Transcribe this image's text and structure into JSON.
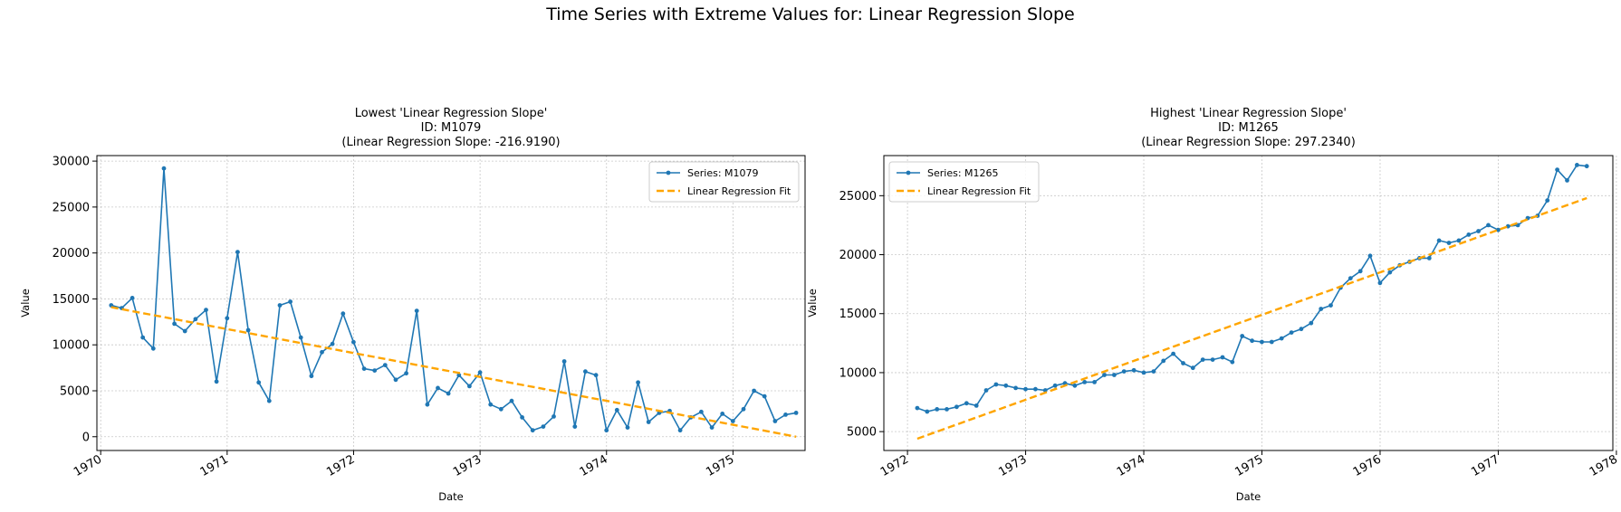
{
  "figure_title": "Time Series with Extreme Values for: Linear Regression Slope",
  "chart_data": [
    {
      "type": "line",
      "title_lines": [
        "Lowest 'Linear Regression Slope'",
        "ID: M1079",
        "(Linear Regression Slope: -216.9190)"
      ],
      "xlabel": "Date",
      "ylabel": "Value",
      "xlim": [
        1969.97,
        1975.57
      ],
      "ylim": [
        -1500,
        30600
      ],
      "x_ticks": [
        1970,
        1971,
        1972,
        1973,
        1974,
        1975
      ],
      "x_tick_labels": [
        "1970",
        "1971",
        "1972",
        "1973",
        "1974",
        "1975"
      ],
      "y_ticks": [
        0,
        5000,
        10000,
        15000,
        20000,
        25000,
        30000
      ],
      "y_tick_labels": [
        "0",
        "5000",
        "10000",
        "15000",
        "20000",
        "25000",
        "30000"
      ],
      "grid": true,
      "legend_position": "upper-right",
      "legend": [
        "Series: M1079",
        "Linear Regression Fit"
      ],
      "series": {
        "name": "Series: M1079",
        "color": "#1f77b4",
        "x_start": 1970.083,
        "x_step": 0.08333,
        "values": [
          14300,
          14000,
          15100,
          10800,
          9600,
          29200,
          12300,
          11500,
          12800,
          13800,
          6000,
          12900,
          20100,
          11600,
          5900,
          3900,
          14300,
          14700,
          10800,
          6600,
          9200,
          10100,
          13400,
          10300,
          7400,
          7200,
          7800,
          6200,
          6900,
          13700,
          3500,
          5300,
          4700,
          6700,
          5500,
          7000,
          3500,
          3000,
          3900,
          2100,
          700,
          1100,
          2200,
          8200,
          1100,
          7100,
          6700,
          700,
          2900,
          1000,
          5900,
          1600,
          2600,
          2800,
          700,
          2100,
          2700,
          1000,
          2500,
          1700,
          3000,
          5000,
          4400,
          1700,
          2400,
          2600
        ]
      },
      "fit": {
        "name": "Linear Regression Fit",
        "color": "#ffa500",
        "x": [
          1970.083,
          1975.5
        ],
        "y": [
          14100,
          0
        ]
      }
    },
    {
      "type": "line",
      "title_lines": [
        "Highest 'Linear Regression Slope'",
        "ID: M1265",
        "(Linear Regression Slope: 297.2340)"
      ],
      "xlabel": "Date",
      "ylabel": "Value",
      "xlim": [
        1971.8,
        1977.97
      ],
      "ylim": [
        3400,
        28400
      ],
      "x_ticks": [
        1972,
        1973,
        1974,
        1975,
        1976,
        1977,
        1978
      ],
      "x_tick_labels": [
        "1972",
        "1973",
        "1974",
        "1975",
        "1976",
        "1977",
        "1978"
      ],
      "y_ticks": [
        5000,
        10000,
        15000,
        20000,
        25000
      ],
      "y_tick_labels": [
        "5000",
        "10000",
        "15000",
        "20000",
        "25000"
      ],
      "grid": true,
      "legend_position": "upper-left",
      "legend": [
        "Series: M1265",
        "Linear Regression Fit"
      ],
      "series": {
        "name": "Series: M1265",
        "color": "#1f77b4",
        "x_start": 1972.083,
        "x_step": 0.08333,
        "values": [
          7000,
          6700,
          6900,
          6900,
          7100,
          7400,
          7200,
          8500,
          9000,
          8900,
          8700,
          8600,
          8600,
          8500,
          8900,
          9100,
          8900,
          9200,
          9200,
          9800,
          9800,
          10100,
          10200,
          10000,
          10100,
          11000,
          11600,
          10800,
          10400,
          11100,
          11100,
          11300,
          10900,
          13100,
          12700,
          12600,
          12600,
          12900,
          13400,
          13700,
          14200,
          15400,
          15700,
          17200,
          18000,
          18600,
          19900,
          17600,
          18500,
          19100,
          19400,
          19700,
          19700,
          21200,
          21000,
          21200,
          21700,
          22000,
          22500,
          22100,
          22400,
          22500,
          23100,
          23300,
          24600,
          27200,
          26300,
          27600,
          27500
        ]
      },
      "fit": {
        "name": "Linear Regression Fit",
        "color": "#ffa500",
        "x": [
          1972.083,
          1977.75
        ],
        "y": [
          4400,
          24800
        ]
      }
    }
  ]
}
